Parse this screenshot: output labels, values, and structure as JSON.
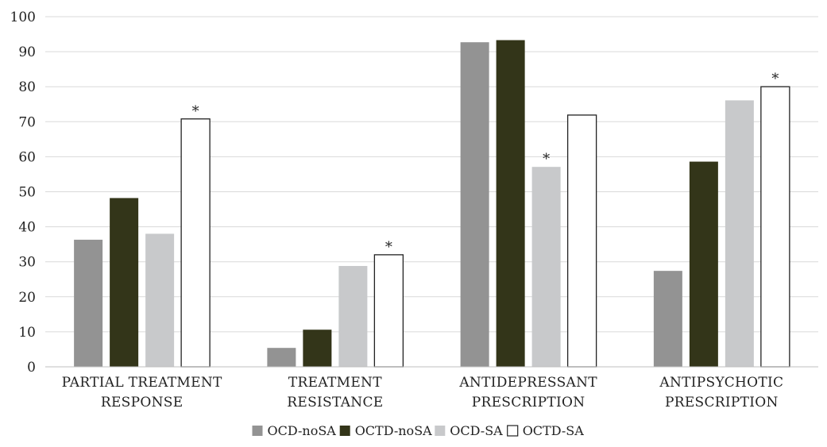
{
  "chart_data": {
    "type": "bar",
    "title": "",
    "xlabel": "",
    "ylabel": "",
    "ylim": [
      0,
      100
    ],
    "yticks": [
      0,
      10,
      20,
      30,
      40,
      50,
      60,
      70,
      80,
      90,
      100
    ],
    "grid": true,
    "legend_position": "bottom",
    "categories": [
      [
        "PARTIAL TREATMENT",
        "RESPONSE"
      ],
      [
        "TREATMENT",
        "RESISTANCE"
      ],
      [
        "ANTIDEPRESSANT",
        "PRESCRIPTION"
      ],
      [
        "ANTIPSYCHOTIC",
        "PRESCRIPTION"
      ]
    ],
    "series": [
      {
        "name": "OCD-noSA",
        "color": "#939393",
        "outline": false,
        "values": [
          36.3,
          5.4,
          92.7,
          27.4
        ],
        "significant": [
          false,
          false,
          false,
          false
        ]
      },
      {
        "name": "OCTD-noSA",
        "color": "#333519",
        "outline": false,
        "values": [
          48.2,
          10.6,
          93.3,
          58.6
        ],
        "significant": [
          false,
          false,
          false,
          false
        ]
      },
      {
        "name": "OCD-SA",
        "color": "#c8c9cb",
        "outline": false,
        "values": [
          38.0,
          28.8,
          57.1,
          76.1
        ],
        "significant": [
          false,
          false,
          true,
          false
        ]
      },
      {
        "name": "OCTD-SA",
        "color": "#ffffff",
        "outline": true,
        "values": [
          70.8,
          32.0,
          71.9,
          80.0
        ],
        "significant": [
          true,
          true,
          false,
          true
        ]
      }
    ],
    "significance_marker": "*"
  }
}
